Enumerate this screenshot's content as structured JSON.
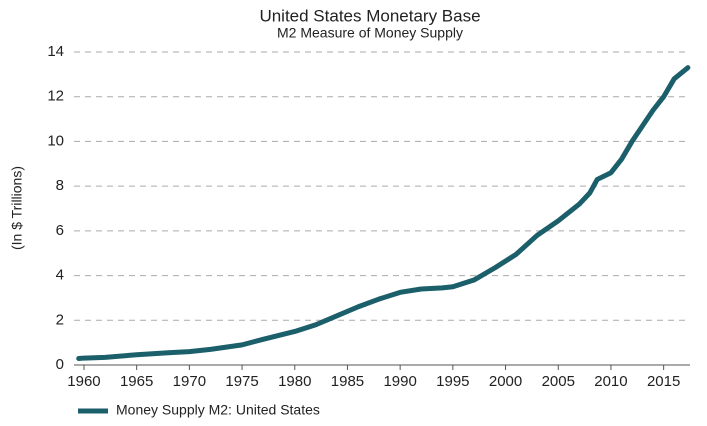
{
  "chart_data": {
    "type": "line",
    "title": "United States Monetary Base",
    "subtitle": "M2 Measure of Money Supply",
    "y_label": "(In $ Trillions)",
    "x": [
      1959.5,
      1960,
      1962,
      1965,
      1968,
      1970,
      1972,
      1975,
      1977,
      1980,
      1982,
      1984,
      1986,
      1988,
      1990,
      1992,
      1994,
      1995,
      1997,
      1999,
      2001,
      2003,
      2005,
      2007,
      2008,
      2008.7,
      2010,
      2011,
      2012,
      2013,
      2014,
      2015,
      2016,
      2017.3
    ],
    "series": [
      {
        "name": "Money Supply M2: United States",
        "color": "#1b5f6b",
        "values": [
          0.29,
          0.31,
          0.34,
          0.46,
          0.55,
          0.6,
          0.7,
          0.9,
          1.15,
          1.5,
          1.8,
          2.2,
          2.6,
          2.95,
          3.25,
          3.4,
          3.45,
          3.5,
          3.8,
          4.35,
          4.95,
          5.8,
          6.45,
          7.2,
          7.7,
          8.3,
          8.6,
          9.2,
          10.0,
          10.7,
          11.4,
          12.0,
          12.8,
          13.3
        ]
      }
    ],
    "xlim": [
      1959.5,
      2017.5
    ],
    "xticks": [
      1960,
      1965,
      1970,
      1975,
      1980,
      1985,
      1990,
      1995,
      2000,
      2005,
      2010,
      2015
    ],
    "ylim": [
      0,
      14
    ],
    "yticks": [
      0,
      2,
      4,
      6,
      8,
      10,
      12,
      14
    ],
    "grid": true
  }
}
